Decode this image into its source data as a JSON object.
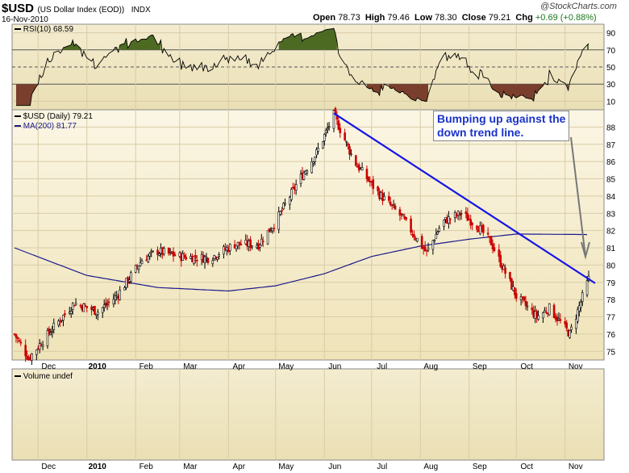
{
  "header": {
    "symbol": "$USD",
    "name": "(US Dollar Index (EOD))",
    "exchange": "INDX",
    "date": "16-Nov-2010",
    "open_label": "Open",
    "open": "78.73",
    "high_label": "High",
    "high": "79.46",
    "low_label": "Low",
    "low": "78.30",
    "close_label": "Close",
    "close": "79.21",
    "chg_label": "Chg",
    "chg": "+0.69 (+0.88%)",
    "watermark": "@StockCharts.com"
  },
  "rsi_panel": {
    "legend": "RSI(10) 68.59",
    "ticks": [
      "90",
      "70",
      "50",
      "30",
      "10"
    ]
  },
  "price_panel": {
    "legend_price": "$USD (Daily) 79.21",
    "legend_ma": "MA(200) 81.77",
    "annotation_line1": "Bumping up against the",
    "annotation_line2": "down trend line.",
    "ticks": [
      "88",
      "87",
      "86",
      "85",
      "84",
      "83",
      "82",
      "81",
      "80",
      "79",
      "78",
      "77",
      "76",
      "75"
    ]
  },
  "volume_panel": {
    "legend": "Volume undef"
  },
  "x_labels": [
    "Dec",
    "2010",
    "Feb",
    "Mar",
    "Apr",
    "May",
    "Jun",
    "Jul",
    "Aug",
    "Sep",
    "Oct",
    "Nov"
  ],
  "colors": {
    "up": "#000000",
    "down": "#cc0000",
    "ma": "#1a1a8c",
    "trend": "#1515e6",
    "overbought": "#4d6a23",
    "oversold": "#7a3f2c"
  },
  "chart_data": {
    "type": "candlestick",
    "title": "$USD (US Dollar Index (EOD)) INDX",
    "x_range": [
      "2009-11-16",
      "2010-11-16"
    ],
    "price_ylim": [
      74.5,
      89
    ],
    "rsi_ylim": [
      0,
      100
    ],
    "grid": true,
    "series": [
      {
        "name": "$USD (Daily)",
        "last": 79.21,
        "anchors": [
          [
            "2009-11-16",
            76.0
          ],
          [
            "2009-11-25",
            74.6
          ],
          [
            "2009-12-10",
            76.3
          ],
          [
            "2009-12-24",
            77.8
          ],
          [
            "2010-01-08",
            77.3
          ],
          [
            "2010-01-20",
            78.2
          ],
          [
            "2010-02-05",
            80.3
          ],
          [
            "2010-02-15",
            80.8
          ],
          [
            "2010-03-01",
            80.5
          ],
          [
            "2010-03-20",
            80.4
          ],
          [
            "2010-04-05",
            81.2
          ],
          [
            "2010-04-20",
            81.2
          ],
          [
            "2010-05-01",
            82.5
          ],
          [
            "2010-05-15",
            84.8
          ],
          [
            "2010-05-27",
            86.5
          ],
          [
            "2010-06-07",
            88.7
          ],
          [
            "2010-06-20",
            86.0
          ],
          [
            "2010-07-05",
            84.2
          ],
          [
            "2010-07-20",
            82.8
          ],
          [
            "2010-08-05",
            80.7
          ],
          [
            "2010-08-15",
            82.5
          ],
          [
            "2010-08-27",
            83.0
          ],
          [
            "2010-09-06",
            82.3
          ],
          [
            "2010-09-15",
            81.3
          ],
          [
            "2010-10-01",
            78.2
          ],
          [
            "2010-10-14",
            77.0
          ],
          [
            "2010-10-22",
            77.5
          ],
          [
            "2010-11-04",
            76.0
          ],
          [
            "2010-11-16",
            79.2
          ]
        ]
      },
      {
        "name": "MA(200)",
        "last": 81.77,
        "anchors": [
          [
            "2009-11-16",
            81.0
          ],
          [
            "2010-01-01",
            79.4
          ],
          [
            "2010-02-15",
            78.7
          ],
          [
            "2010-04-01",
            78.5
          ],
          [
            "2010-05-01",
            78.8
          ],
          [
            "2010-06-01",
            79.5
          ],
          [
            "2010-07-01",
            80.5
          ],
          [
            "2010-08-01",
            81.1
          ],
          [
            "2010-09-01",
            81.5
          ],
          [
            "2010-10-01",
            81.8
          ],
          [
            "2010-11-16",
            81.77
          ]
        ]
      },
      {
        "name": "RSI(10)",
        "last": 68.59
      }
    ],
    "trend_line": [
      [
        "2010-06-07",
        88.8
      ],
      [
        "2010-11-16",
        79.3
      ]
    ],
    "rsi_levels": [
      70,
      50,
      30
    ]
  }
}
